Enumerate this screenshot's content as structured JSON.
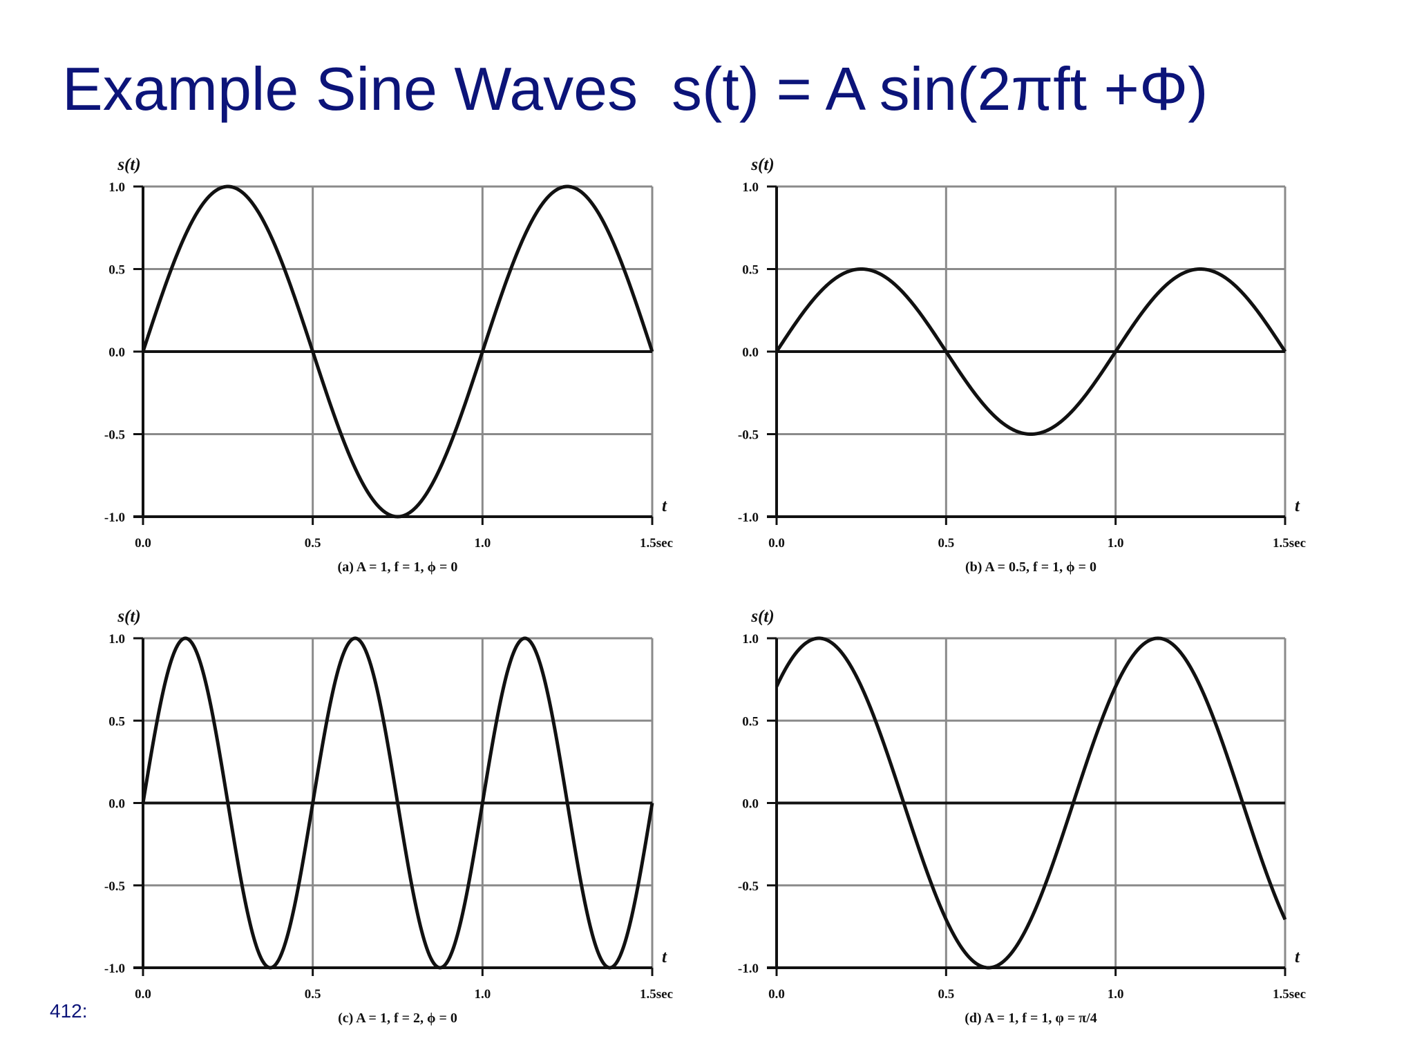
{
  "slide": {
    "title": "Example Sine Waves  s(t) = A sin(2πft +Φ)",
    "page_number": "412:"
  },
  "chart_data": [
    {
      "type": "line",
      "ylabel": "s(t)",
      "xlabel": "t",
      "xlim": [
        0,
        1.5
      ],
      "ylim": [
        -1.0,
        1.0
      ],
      "x_ticks": [
        "0.0",
        "0.5",
        "1.0",
        "1.5sec"
      ],
      "y_ticks": [
        "1.0",
        "0.5",
        "0.0",
        "-0.5",
        "-1.0"
      ],
      "grid": true,
      "caption": "(a) A = 1, f = 1, ϕ = 0",
      "series": [
        {
          "amplitude": 1,
          "frequency": 1,
          "phase": 0
        }
      ],
      "line_color": "#111111"
    },
    {
      "type": "line",
      "ylabel": "s(t)",
      "xlabel": "t",
      "xlim": [
        0,
        1.5
      ],
      "ylim": [
        -1.0,
        1.0
      ],
      "x_ticks": [
        "0.0",
        "0.5",
        "1.0",
        "1.5sec"
      ],
      "y_ticks": [
        "1.0",
        "0.5",
        "0.0",
        "-0.5",
        "-1.0"
      ],
      "grid": true,
      "caption": "(b) A = 0.5, f = 1, ϕ = 0",
      "series": [
        {
          "amplitude": 0.5,
          "frequency": 1,
          "phase": 0
        }
      ],
      "line_color": "#111111"
    },
    {
      "type": "line",
      "ylabel": "s(t)",
      "xlabel": "t",
      "xlim": [
        0,
        1.5
      ],
      "ylim": [
        -1.0,
        1.0
      ],
      "x_ticks": [
        "0.0",
        "0.5",
        "1.0",
        "1.5sec"
      ],
      "y_ticks": [
        "1.0",
        "0.5",
        "0.0",
        "-0.5",
        "-1.0"
      ],
      "grid": true,
      "caption": "(c) A = 1, f = 2, ϕ = 0",
      "series": [
        {
          "amplitude": 1,
          "frequency": 2,
          "phase": 0
        }
      ],
      "line_color": "#111111"
    },
    {
      "type": "line",
      "ylabel": "s(t)",
      "xlabel": "t",
      "xlim": [
        0,
        1.5
      ],
      "ylim": [
        -1.0,
        1.0
      ],
      "x_ticks": [
        "0.0",
        "0.5",
        "1.0",
        "1.5sec"
      ],
      "y_ticks": [
        "1.0",
        "0.5",
        "0.0",
        "-0.5",
        "-1.0"
      ],
      "grid": true,
      "caption": "(d) A = 1, f = 1, φ = π/4",
      "series": [
        {
          "amplitude": 1,
          "frequency": 1,
          "phase": 0.7853981634
        }
      ],
      "line_color": "#111111"
    }
  ],
  "colors": {
    "title": "#0c1479",
    "grid": "#8a8a8a",
    "axis": "#111111",
    "curve": "#111111"
  }
}
